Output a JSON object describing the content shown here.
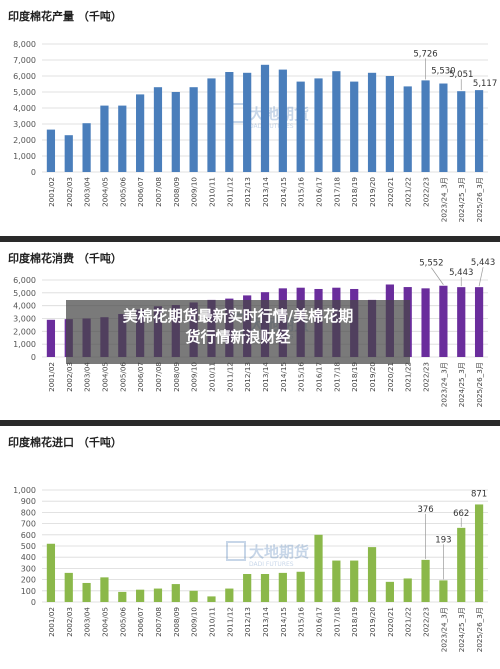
{
  "overlay": {
    "line1": "美棉花期货最新实时行情/美棉花期",
    "line2": "货行情新浪财经"
  },
  "watermark": {
    "text": "大地期货",
    "sub": "DADI FUTURES"
  },
  "chart_data": [
    {
      "type": "bar",
      "title": "印度棉花产量 （千吨）",
      "color": "#4a7ebb",
      "ylim": [
        0,
        8000
      ],
      "yticks": [
        "0",
        "1,000",
        "2,000",
        "3,000",
        "4,000",
        "5,000",
        "6,000",
        "7,000",
        "8,000"
      ],
      "grid": true,
      "categories": [
        "2001/02",
        "2002/03",
        "2003/04",
        "2004/05",
        "2005/06",
        "2006/07",
        "2007/08",
        "2008/09",
        "2009/10",
        "2010/11",
        "2011/12",
        "2012/13",
        "2013/14",
        "2014/15",
        "2015/16",
        "2016/17",
        "2017/18",
        "2018/19",
        "2019/20",
        "2020/21",
        "2021/22",
        "2022/23",
        "2023/24_3月",
        "2024/25_3月",
        "2025/26_3月"
      ],
      "values": [
        2650,
        2300,
        3050,
        4150,
        4150,
        4850,
        5300,
        5000,
        5300,
        5850,
        6250,
        6200,
        6700,
        6400,
        5650,
        5850,
        6300,
        5650,
        6200,
        6000,
        5350,
        5726,
        5530,
        5051,
        5117
      ],
      "labels": {
        "21": "5,726",
        "22": "5,530",
        "23": "5,051",
        "24": "5,117"
      },
      "label_offsets": {
        "21": [
          0,
          -24
        ],
        "22": [
          0,
          -10
        ],
        "23": [
          0,
          -14
        ],
        "24": [
          6,
          -4
        ]
      }
    },
    {
      "type": "bar",
      "title": "印度棉花消费 （千吨）",
      "color": "#6a2d9c",
      "ylim": [
        0,
        6000
      ],
      "yticks": [
        "0",
        "1,000",
        "2,000",
        "3,000",
        "4,000",
        "5,000",
        "6,000"
      ],
      "grid": true,
      "categories": [
        "2001/02",
        "2002/03",
        "2003/04",
        "2004/05",
        "2005/06",
        "2006/07",
        "2007/08",
        "2008/09",
        "2009/10",
        "2010/11",
        "2011/12",
        "2012/13",
        "2013/14",
        "2014/15",
        "2015/16",
        "2016/17",
        "2017/18",
        "2018/19",
        "2019/20",
        "2020/21",
        "2021/22",
        "2022/23",
        "2023/24_3月",
        "2024/25_3月",
        "2025/26_3月"
      ],
      "values": [
        2900,
        2950,
        3000,
        3100,
        3350,
        3700,
        3950,
        4050,
        4250,
        4450,
        4550,
        4800,
        5050,
        5350,
        5400,
        5300,
        5400,
        5300,
        4450,
        5650,
        5450,
        5350,
        5552,
        5443,
        5443
      ],
      "labels": {
        "22": "5,552",
        "23": "5,443",
        "24": "5,443"
      },
      "label_offsets": {
        "22": [
          -12,
          -20
        ],
        "23": [
          0,
          -12
        ],
        "24": [
          4,
          -22
        ]
      }
    },
    {
      "type": "bar",
      "title": "印度棉花进口 （千吨）",
      "color": "#8bb84a",
      "ylim": [
        0,
        1000
      ],
      "yticks": [
        "0",
        "100",
        "200",
        "300",
        "400",
        "500",
        "600",
        "700",
        "800",
        "900",
        "1,000"
      ],
      "grid": true,
      "categories": [
        "2001/02",
        "2002/03",
        "2003/04",
        "2004/05",
        "2005/06",
        "2006/07",
        "2007/08",
        "2008/09",
        "2009/10",
        "2010/11",
        "2011/12",
        "2012/13",
        "2013/14",
        "2014/15",
        "2015/16",
        "2016/17",
        "2017/18",
        "2018/19",
        "2019/20",
        "2020/21",
        "2021/22",
        "2022/23",
        "2023/24_3月",
        "2024/25_3月",
        "2025/26_3月"
      ],
      "values": [
        520,
        260,
        170,
        220,
        90,
        110,
        120,
        160,
        100,
        50,
        120,
        250,
        250,
        260,
        270,
        600,
        370,
        370,
        490,
        180,
        210,
        376,
        193,
        662,
        871
      ],
      "labels": {
        "21": "376",
        "22": "193",
        "23": "662",
        "24": "871"
      },
      "label_offsets": {
        "21": [
          0,
          -48
        ],
        "22": [
          0,
          -38
        ],
        "23": [
          0,
          -12
        ],
        "24": [
          0,
          -8
        ]
      }
    }
  ]
}
